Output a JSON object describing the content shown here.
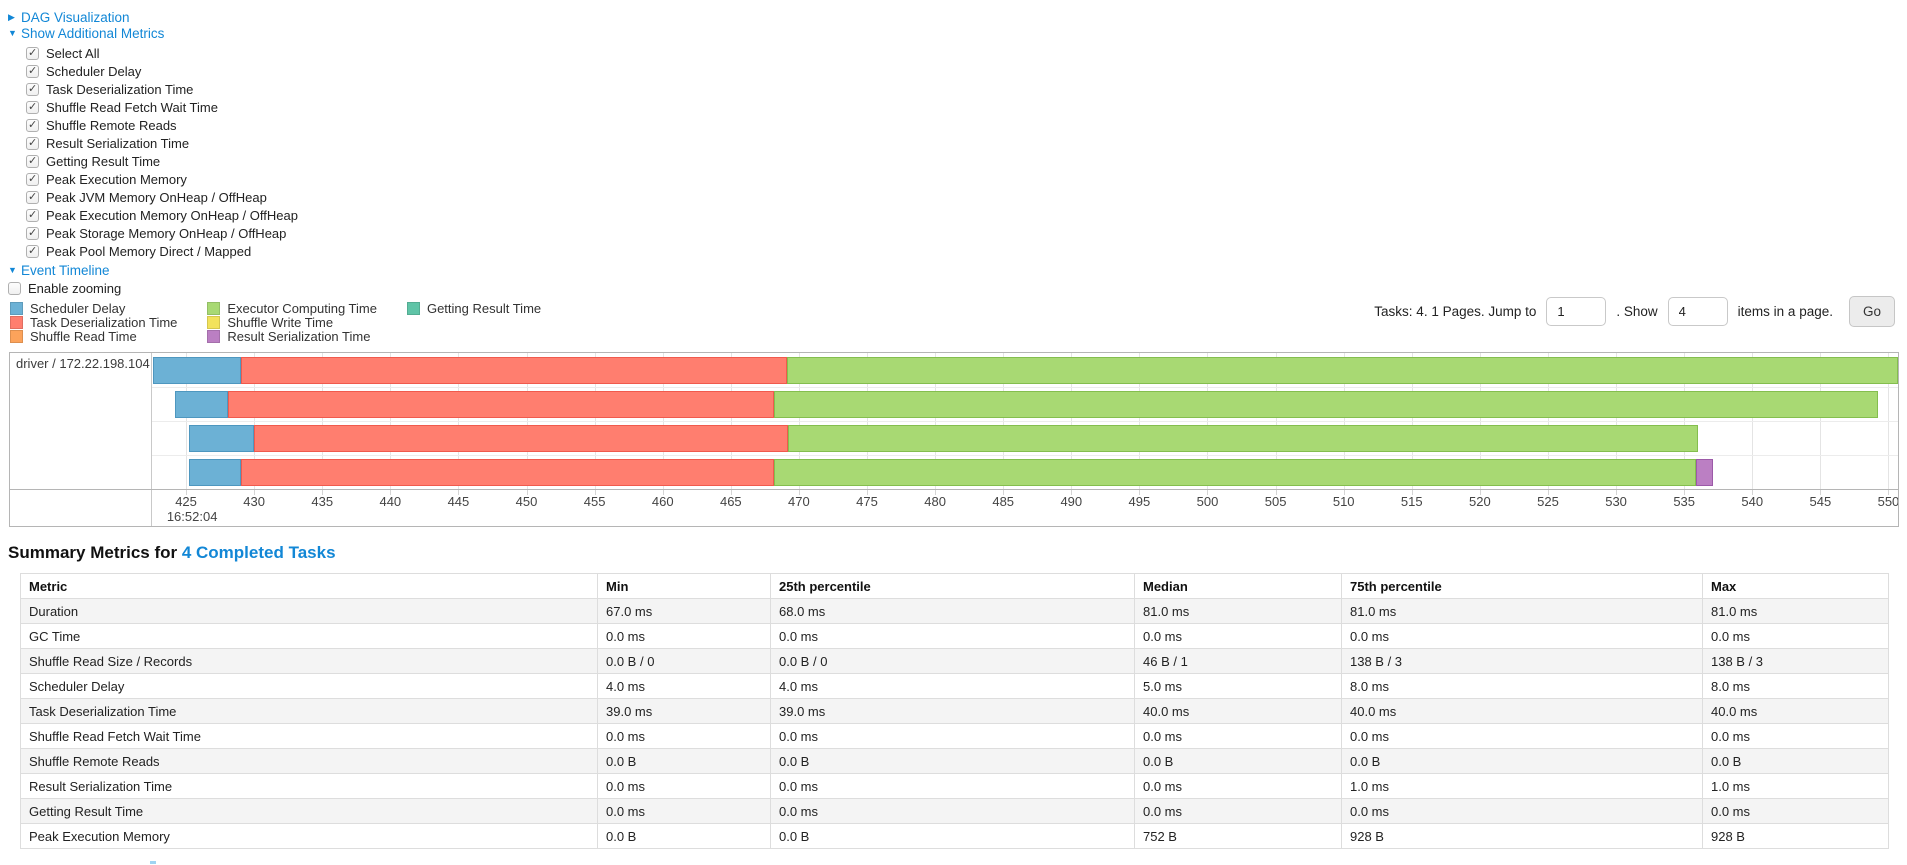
{
  "colors": {
    "link": "#1287d6",
    "scheduler_delay": "#6CB1D5",
    "task_deserialization": "#FF7E6F",
    "shuffle_read": "#FCA35B",
    "executor_computing": "#A8D973",
    "shuffle_write": "#F2E25B",
    "result_serialization": "#BB7FC3",
    "getting_result": "#5FC4A7"
  },
  "segment_borders": {
    "scheduler_delay": "#4E97BF",
    "task_deserialization": "#F05A4D",
    "shuffle_read": "#E8833B",
    "executor_computing": "#84BE4E",
    "shuffle_write": "#D9C63E",
    "result_serialization": "#9C5AA8",
    "getting_result": "#41A98C"
  },
  "dag_section": {
    "label": "DAG Visualization"
  },
  "metrics_section": {
    "label": "Show Additional Metrics",
    "items": [
      {
        "label": "Select All",
        "checked": true
      },
      {
        "label": "Scheduler Delay",
        "checked": true
      },
      {
        "label": "Task Deserialization Time",
        "checked": true
      },
      {
        "label": "Shuffle Read Fetch Wait Time",
        "checked": true
      },
      {
        "label": "Shuffle Remote Reads",
        "checked": true
      },
      {
        "label": "Result Serialization Time",
        "checked": true
      },
      {
        "label": "Getting Result Time",
        "checked": true
      },
      {
        "label": "Peak Execution Memory",
        "checked": true
      },
      {
        "label": "Peak JVM Memory OnHeap / OffHeap",
        "checked": true
      },
      {
        "label": "Peak Execution Memory OnHeap / OffHeap",
        "checked": true
      },
      {
        "label": "Peak Storage Memory OnHeap / OffHeap",
        "checked": true
      },
      {
        "label": "Peak Pool Memory Direct / Mapped",
        "checked": true
      }
    ]
  },
  "event_timeline_section": {
    "label": "Event Timeline",
    "enable_zooming_label": "Enable zooming",
    "enable_zooming_checked": false
  },
  "timeline": {
    "legend_columns": [
      [
        {
          "key": "scheduler_delay",
          "label": "Scheduler Delay"
        },
        {
          "key": "task_deserialization",
          "label": "Task Deserialization Time"
        },
        {
          "key": "shuffle_read",
          "label": "Shuffle Read Time"
        }
      ],
      [
        {
          "key": "executor_computing",
          "label": "Executor Computing Time"
        },
        {
          "key": "shuffle_write",
          "label": "Shuffle Write Time"
        },
        {
          "key": "result_serialization",
          "label": "Result Serialization Time"
        }
      ],
      [
        {
          "key": "getting_result",
          "label": "Getting Result Time"
        }
      ]
    ],
    "pagination": {
      "tasks_text": "Tasks: 4. 1 Pages. Jump to",
      "jump_value": "1",
      "show_text": ". Show",
      "show_value": "4",
      "suffix_text": "items in a page.",
      "go_label": "Go"
    },
    "row_label": "driver / 172.22.198.104",
    "axis": {
      "min": 422.5,
      "max": 550.7,
      "tick_start": 425,
      "tick_step": 5,
      "tick_end": 550,
      "start_time_label": "16:52:04"
    },
    "tasks": [
      {
        "segments": [
          {
            "key": "scheduler_delay",
            "start": 422.6,
            "end": 429.0
          },
          {
            "key": "task_deserialization",
            "start": 429.0,
            "end": 469.1
          },
          {
            "key": "executor_computing",
            "start": 469.1,
            "end": 550.7
          }
        ]
      },
      {
        "segments": [
          {
            "key": "scheduler_delay",
            "start": 424.2,
            "end": 428.1
          },
          {
            "key": "task_deserialization",
            "start": 428.1,
            "end": 468.2
          },
          {
            "key": "executor_computing",
            "start": 468.2,
            "end": 549.2
          }
        ]
      },
      {
        "segments": [
          {
            "key": "scheduler_delay",
            "start": 425.2,
            "end": 430.0
          },
          {
            "key": "task_deserialization",
            "start": 430.0,
            "end": 469.2
          },
          {
            "key": "executor_computing",
            "start": 469.2,
            "end": 536.0
          }
        ]
      },
      {
        "segments": [
          {
            "key": "scheduler_delay",
            "start": 425.2,
            "end": 429.0
          },
          {
            "key": "task_deserialization",
            "start": 429.0,
            "end": 468.2
          },
          {
            "key": "executor_computing",
            "start": 468.2,
            "end": 535.9
          },
          {
            "key": "result_serialization",
            "start": 535.9,
            "end": 537.1
          }
        ]
      }
    ]
  },
  "summary": {
    "heading_prefix": "Summary Metrics for ",
    "heading_link": "4 Completed Tasks"
  },
  "summary_table": {
    "columns": [
      "Metric",
      "Min",
      "25th percentile",
      "Median",
      "75th percentile",
      "Max"
    ],
    "rows": [
      [
        "Duration",
        "67.0 ms",
        "68.0 ms",
        "81.0 ms",
        "81.0 ms",
        "81.0 ms"
      ],
      [
        "GC Time",
        "0.0 ms",
        "0.0 ms",
        "0.0 ms",
        "0.0 ms",
        "0.0 ms"
      ],
      [
        "Shuffle Read Size / Records",
        "0.0 B / 0",
        "0.0 B / 0",
        "46 B / 1",
        "138 B / 3",
        "138 B / 3"
      ],
      [
        "Scheduler Delay",
        "4.0 ms",
        "4.0 ms",
        "5.0 ms",
        "8.0 ms",
        "8.0 ms"
      ],
      [
        "Task Deserialization Time",
        "39.0 ms",
        "39.0 ms",
        "40.0 ms",
        "40.0 ms",
        "40.0 ms"
      ],
      [
        "Shuffle Read Fetch Wait Time",
        "0.0 ms",
        "0.0 ms",
        "0.0 ms",
        "0.0 ms",
        "0.0 ms"
      ],
      [
        "Shuffle Remote Reads",
        "0.0 B",
        "0.0 B",
        "0.0 B",
        "0.0 B",
        "0.0 B"
      ],
      [
        "Result Serialization Time",
        "0.0 ms",
        "0.0 ms",
        "0.0 ms",
        "1.0 ms",
        "1.0 ms"
      ],
      [
        "Getting Result Time",
        "0.0 ms",
        "0.0 ms",
        "0.0 ms",
        "0.0 ms",
        "0.0 ms"
      ],
      [
        "Peak Execution Memory",
        "0.0 B",
        "0.0 B",
        "752 B",
        "928 B",
        "928 B"
      ]
    ]
  }
}
